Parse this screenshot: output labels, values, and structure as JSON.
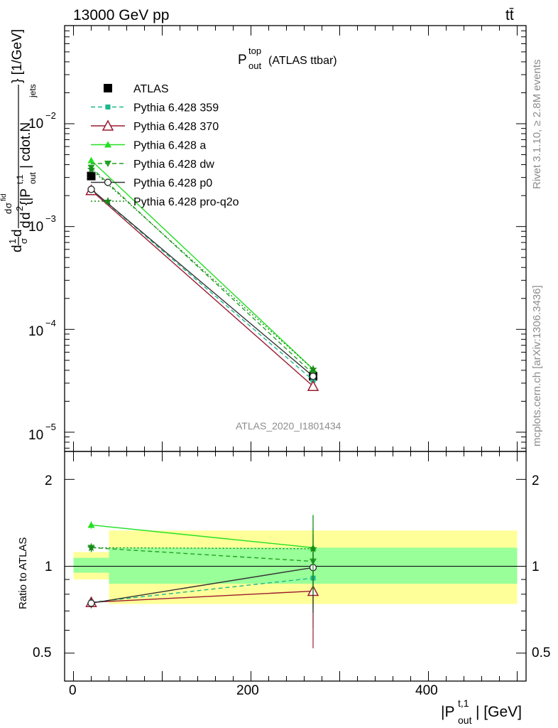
{
  "header": {
    "energy_label": "13000 GeV pp",
    "process_label": "tt̄",
    "plot_title_main": "P",
    "plot_title_sup": "top",
    "plot_title_sub": "out",
    "plot_title_rest": "(ATLAS ttbar)",
    "side_label_top": "Rivet 3.1.10, ≥ 2.8M events",
    "side_label_bottom": "mcplots.cern.ch [arXiv:1306.3436]",
    "analysis_id": "ATLAS_2020_I1801434"
  },
  "axes": {
    "main_ylabel_parts": [
      "d",
      "1",
      "σ",
      "d",
      "d",
      "σ",
      "d",
      "fid",
      "d",
      "2",
      "{|P",
      "t,1",
      "out",
      "| cdot.N",
      "jets",
      "} [1/GeV]"
    ],
    "ratio_ylabel": "Ratio to ATLAS",
    "xlabel_main": "|P",
    "xlabel_sup": "t,1",
    "xlabel_sub": "out",
    "xlabel_unit": "| [GeV]",
    "main_ytick_labels": [
      "10",
      "−5",
      "10",
      "−4",
      "10",
      "−3",
      "10",
      "−2"
    ],
    "ratio_ytick_labels": [
      "0.5",
      "1",
      "2"
    ],
    "xtick_labels": [
      "0",
      "200",
      "400"
    ]
  },
  "legend": {
    "items": [
      {
        "label": "ATLAS",
        "color": "#000000",
        "marker": "square",
        "dash": "none"
      },
      {
        "label": "Pythia 6.428 359",
        "color": "#1bb98d",
        "marker": "small-square",
        "dash": "dashed"
      },
      {
        "label": "Pythia 6.428 370",
        "color": "#9b1b30",
        "marker": "open-triangle",
        "dash": "solid"
      },
      {
        "label": "Pythia 6.428 a",
        "color": "#22e022",
        "marker": "triangle",
        "dash": "solid"
      },
      {
        "label": "Pythia 6.428 dw",
        "color": "#22a022",
        "marker": "down-triangle",
        "dash": "dashed"
      },
      {
        "label": "Pythia 6.428 p0",
        "color": "#333333",
        "marker": "open-circle",
        "dash": "solid"
      },
      {
        "label": "Pythia 6.428 pro-q2o",
        "color": "#1a8a1a",
        "marker": "star",
        "dash": "dotted"
      }
    ]
  },
  "chart_data": {
    "type": "line",
    "x_range": [
      -10,
      510
    ],
    "main": {
      "y_scale": "log",
      "y_range": [
        6.5e-06,
        0.09
      ],
      "x": [
        20,
        270
      ],
      "series": [
        {
          "name": "ATLAS",
          "values": [
            0.0031,
            3.5e-05
          ],
          "error": [
            0.00012,
            3e-06
          ]
        },
        {
          "name": "Pythia 6.428 359",
          "values": [
            0.0023,
            3.2e-05
          ]
        },
        {
          "name": "Pythia 6.428 370",
          "values": [
            0.00225,
            2.8e-05
          ]
        },
        {
          "name": "Pythia 6.428 a",
          "values": [
            0.0044,
            4.1e-05
          ]
        },
        {
          "name": "Pythia 6.428 dw",
          "values": [
            0.00375,
            3.7e-05
          ]
        },
        {
          "name": "Pythia 6.428 p0",
          "values": [
            0.0023,
            3.5e-05
          ]
        },
        {
          "name": "Pythia 6.428 pro-q2o",
          "values": [
            0.0036,
            4.1e-05
          ]
        }
      ]
    },
    "ratio": {
      "y_scale": "log",
      "y_range": [
        0.4,
        2.5
      ],
      "x": [
        20,
        270
      ],
      "band_green": [
        {
          "x0": 0,
          "x1": 40,
          "low": 0.95,
          "high": 1.07
        },
        {
          "x0": 40,
          "x1": 500,
          "low": 0.87,
          "high": 1.16
        }
      ],
      "band_yellow": [
        {
          "x0": 0,
          "x1": 40,
          "low": 0.9,
          "high": 1.12
        },
        {
          "x0": 40,
          "x1": 500,
          "low": 0.74,
          "high": 1.33
        }
      ],
      "series": [
        {
          "name": "Pythia 6.428 359",
          "values": [
            0.75,
            0.91
          ],
          "error": [
            0.03,
            0.3
          ]
        },
        {
          "name": "Pythia 6.428 370",
          "values": [
            0.75,
            0.82
          ],
          "error": [
            0.03,
            0.3
          ]
        },
        {
          "name": "Pythia 6.428 a",
          "values": [
            1.39,
            1.16
          ],
          "error": [
            0.04,
            0.35
          ]
        },
        {
          "name": "Pythia 6.428 dw",
          "values": [
            1.16,
            1.04
          ],
          "error": [
            0.04,
            0.32
          ]
        },
        {
          "name": "Pythia 6.428 p0",
          "values": [
            0.745,
            0.99
          ],
          "error": [
            0.03,
            0.3
          ]
        },
        {
          "name": "Pythia 6.428 pro-q2o",
          "values": [
            1.16,
            1.15
          ],
          "error": [
            0.04,
            0.35
          ]
        }
      ]
    }
  }
}
